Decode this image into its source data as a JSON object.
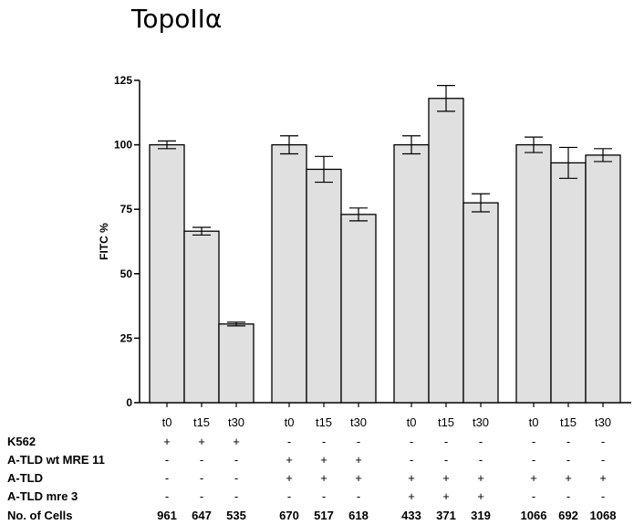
{
  "chart_data": {
    "type": "bar",
    "title": "TopoIIα",
    "ylabel": "FITC %",
    "xlabel": "",
    "ylim": [
      0,
      125
    ],
    "yticks": [
      0,
      25,
      50,
      75,
      100,
      125
    ],
    "grid": false,
    "bar_color": "#e0e0e0",
    "categories": [
      "t0",
      "t15",
      "t30",
      "t0",
      "t15",
      "t30",
      "t0",
      "t15",
      "t30",
      "t0",
      "t15",
      "t30"
    ],
    "groups": [
      3,
      3,
      3,
      3
    ],
    "values": [
      100,
      66.5,
      30.5,
      100,
      90.5,
      73,
      100,
      118,
      77.5,
      100,
      93,
      96
    ],
    "errors": [
      1.5,
      1.5,
      0.7,
      3.5,
      5,
      2.5,
      3.5,
      5,
      3.5,
      3,
      6,
      2.5
    ],
    "condition_rows": [
      {
        "label": "K562",
        "cells": [
          "+",
          "+",
          "+",
          "-",
          "-",
          "-",
          "-",
          "-",
          "-",
          "-",
          "-",
          "-"
        ]
      },
      {
        "label": "A-TLD wt MRE 11",
        "cells": [
          "-",
          "-",
          "-",
          "+",
          "+",
          "+",
          "-",
          "-",
          "-",
          "-",
          "-",
          "-"
        ]
      },
      {
        "label": "A-TLD",
        "cells": [
          "-",
          "-",
          "-",
          "+",
          "+",
          "+",
          "+",
          "+",
          "+",
          "+",
          "+",
          "+"
        ]
      },
      {
        "label": "A-TLD mre 3",
        "cells": [
          "-",
          "-",
          "-",
          "-",
          "-",
          "-",
          "+",
          "+",
          "+",
          "-",
          "-",
          "-"
        ]
      }
    ],
    "cell_counts": {
      "label": "No. of Cells",
      "values": [
        "961",
        "647",
        "535",
        "670",
        "517",
        "618",
        "433",
        "371",
        "319",
        "1066",
        "692",
        "1068"
      ]
    }
  }
}
